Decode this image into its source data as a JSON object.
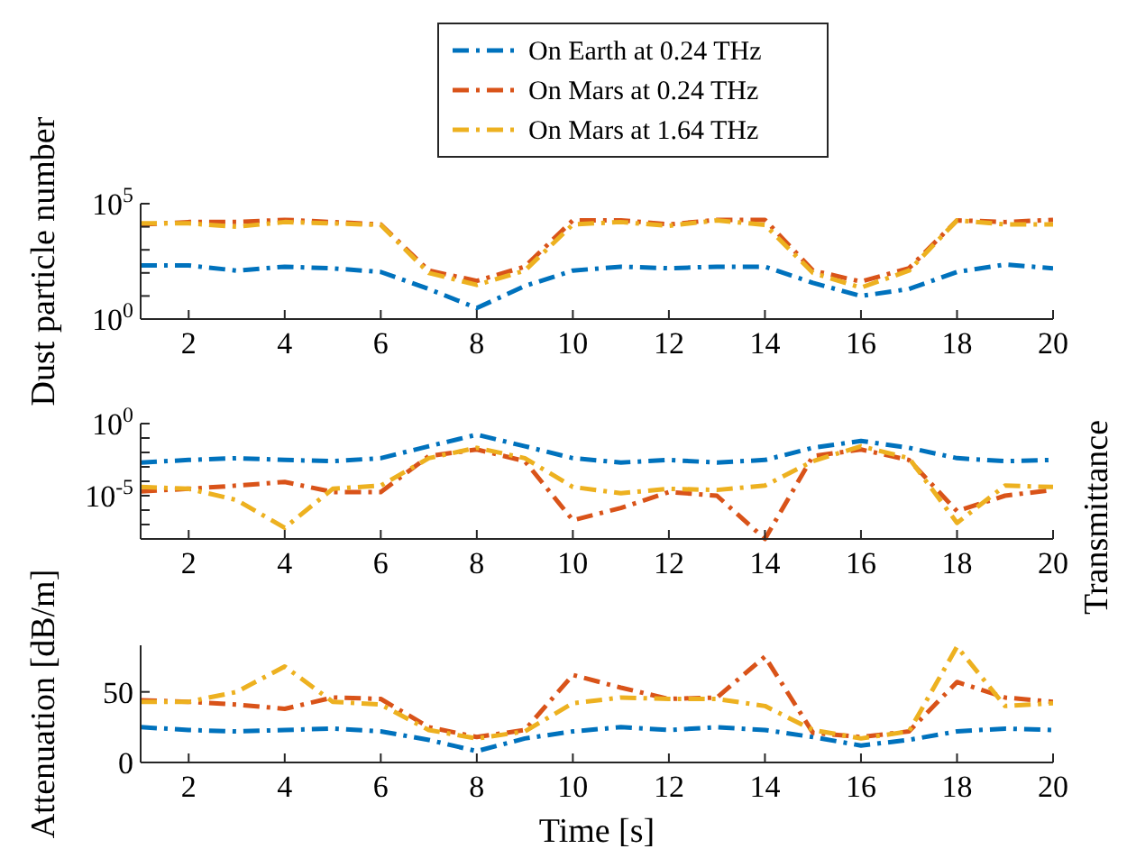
{
  "chart_data": [
    {
      "type": "line",
      "ylabel": "Dust particle number",
      "log": "y",
      "legend": "top",
      "line_style": "dashed",
      "x": [
        1,
        2,
        3,
        4,
        5,
        6,
        7,
        8,
        9,
        10,
        11,
        12,
        13,
        14,
        15,
        16,
        17,
        18,
        19,
        20
      ],
      "xlim": [
        1,
        20
      ],
      "xticks": [
        2,
        4,
        6,
        8,
        10,
        12,
        14,
        16,
        18,
        20
      ],
      "ylim": [
        1,
        100000
      ],
      "yticks": [
        {
          "value": 1,
          "label": "10$^{0}$"
        },
        {
          "value": 10,
          "label": null
        },
        {
          "value": 100,
          "label": null
        },
        {
          "value": 1000,
          "label": null
        },
        {
          "value": 10000,
          "label": null
        },
        {
          "value": 100000,
          "label": "10$^{5}$"
        }
      ],
      "series": [
        {
          "name": "On Earth at 0.24 THz",
          "color": "#0072bd",
          "values": [
            210,
            210,
            126,
            186,
            158,
            110,
            20,
            3,
            27,
            126,
            186,
            160,
            186,
            186,
            37,
            10,
            20,
            110,
            230,
            158
          ]
        },
        {
          "name": "On Mars at 0.24 THz",
          "color": "#d95319",
          "values": [
            12600,
            16000,
            16000,
            20000,
            16000,
            12600,
            126,
            45,
            186,
            19000,
            19000,
            12600,
            20000,
            20000,
            126,
            42,
            160,
            19000,
            16000,
            20000
          ]
        },
        {
          "name": "On Mars at 1.64 THz",
          "color": "#edb120",
          "values": [
            14000,
            14000,
            10000,
            16000,
            14000,
            12000,
            100,
            30,
            126,
            12600,
            16000,
            11000,
            19000,
            12000,
            100,
            23,
            126,
            19000,
            12600,
            12600
          ]
        }
      ]
    },
    {
      "type": "line",
      "y2label": "Transmittance",
      "log": "y",
      "line_style": "dashed",
      "x": [
        1,
        2,
        3,
        4,
        5,
        6,
        7,
        8,
        9,
        10,
        11,
        12,
        13,
        14,
        15,
        16,
        17,
        18,
        19,
        20
      ],
      "xlim": [
        1,
        20
      ],
      "xticks": [
        2,
        4,
        6,
        8,
        10,
        12,
        14,
        16,
        18,
        20
      ],
      "ylim": [
        1e-08,
        1
      ],
      "yticks": [
        {
          "value": 1e-08,
          "label": null
        },
        {
          "value": 1e-07,
          "label": null
        },
        {
          "value": 1e-06,
          "label": null
        },
        {
          "value": 1e-05,
          "label": "10$^{-5}$"
        },
        {
          "value": 0.0001,
          "label": null
        },
        {
          "value": 0.001,
          "label": null
        },
        {
          "value": 0.01,
          "label": null
        },
        {
          "value": 0.1,
          "label": null
        },
        {
          "value": 1,
          "label": "10$^{0}$"
        }
      ],
      "series": [
        {
          "color": "#0072bd",
          "values": [
            0.002,
            0.003,
            0.004,
            0.003,
            0.0025,
            0.004,
            0.027,
            0.17,
            0.027,
            0.004,
            0.002,
            0.003,
            0.002,
            0.003,
            0.021,
            0.063,
            0.021,
            0.004,
            0.0025,
            0.003
          ]
        },
        {
          "color": "#d95319",
          "values": [
            2e-05,
            3e-05,
            5e-05,
            9e-05,
            1.8e-05,
            1.8e-05,
            0.0056,
            0.016,
            0.0025,
            2e-07,
            1.4e-06,
            1.8e-05,
            1e-05,
            1e-08,
            0.0056,
            0.016,
            0.003,
            8.5e-07,
            1e-05,
            2.5e-05
          ]
        },
        {
          "color": "#edb120",
          "values": [
            4e-05,
            3e-05,
            5e-06,
            6e-08,
            3e-05,
            5e-05,
            0.004,
            0.021,
            0.004,
            4e-05,
            1.5e-05,
            3e-05,
            2.5e-05,
            5e-05,
            0.0025,
            0.027,
            0.004,
            1.3e-07,
            5e-05,
            4e-05
          ]
        }
      ]
    },
    {
      "type": "line",
      "ylabel": "Attenuation [dB/m]",
      "xlabel": "Time [s]",
      "line_style": "dashed",
      "x": [
        1,
        2,
        3,
        4,
        5,
        6,
        7,
        8,
        9,
        10,
        11,
        12,
        13,
        14,
        15,
        16,
        17,
        18,
        19,
        20
      ],
      "xlim": [
        1,
        20
      ],
      "xticks": [
        2,
        4,
        6,
        8,
        10,
        12,
        14,
        16,
        18,
        20
      ],
      "ylim": [
        0,
        83
      ],
      "yticks": [
        0,
        50
      ],
      "series": [
        {
          "color": "#0072bd",
          "values": [
            25,
            23,
            22,
            23,
            24,
            22,
            16,
            8,
            17,
            22,
            25,
            23,
            25,
            23,
            18,
            12,
            16,
            22,
            24,
            23
          ]
        },
        {
          "color": "#d95319",
          "values": [
            44,
            43,
            41,
            38,
            46,
            45,
            25,
            18,
            23,
            62,
            53,
            45,
            46,
            75,
            21,
            18,
            22,
            57,
            46,
            43
          ]
        },
        {
          "color": "#edb120",
          "values": [
            43,
            43,
            50,
            68,
            43,
            41,
            23,
            17,
            22,
            42,
            46,
            45,
            45,
            40,
            23,
            17,
            22,
            82,
            40,
            42
          ]
        }
      ]
    }
  ]
}
